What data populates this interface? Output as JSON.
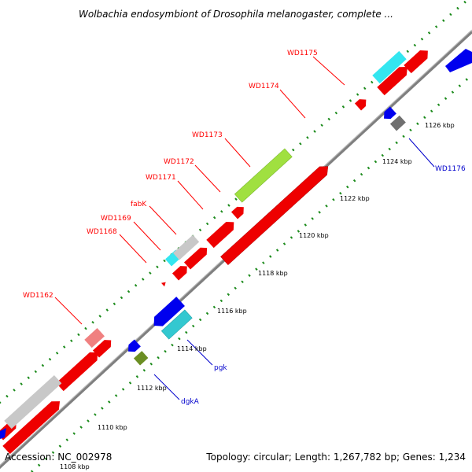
{
  "title": "Wolbachia endosymbiont of Drosophila melanogaster, complete ...",
  "accession": "Accession: NC_002978",
  "topology": "Topology: circular; Length: 1,267,782 bp; Genes: 1,234",
  "colors": {
    "backbone": "#7f7f7f",
    "tick_dots": "#1a8a1a",
    "label_red": "#ff0000",
    "label_blue": "#0000cc"
  },
  "ticks": [
    {
      "label": "1108 kbp"
    },
    {
      "label": "1110 kbp"
    },
    {
      "label": "1112 kbp"
    },
    {
      "label": "1114 kbp"
    },
    {
      "label": "1116 kbp"
    },
    {
      "label": "1118 kbp"
    },
    {
      "label": "1120 kbp"
    },
    {
      "label": "1122 kbp"
    },
    {
      "label": "1124 kbp"
    },
    {
      "label": "1126 kbp"
    }
  ],
  "gene_labels": [
    {
      "name": "WD1175",
      "color": "red"
    },
    {
      "name": "WD1174",
      "color": "red"
    },
    {
      "name": "WD1173",
      "color": "red"
    },
    {
      "name": "WD1172",
      "color": "red"
    },
    {
      "name": "WD1171",
      "color": "red"
    },
    {
      "name": "fabK",
      "color": "red"
    },
    {
      "name": "WD1169",
      "color": "red"
    },
    {
      "name": "WD1168",
      "color": "red"
    },
    {
      "name": "WD1162",
      "color": "red"
    },
    {
      "name": "WD1176",
      "color": "blue"
    },
    {
      "name": "pgk",
      "color": "blue"
    },
    {
      "name": "dgkA",
      "color": "blue"
    }
  ]
}
